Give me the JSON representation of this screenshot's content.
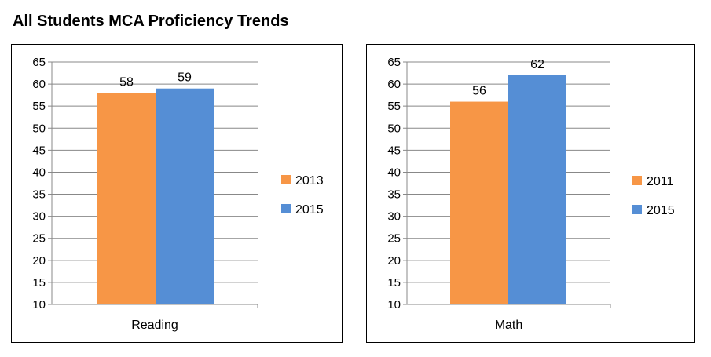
{
  "title": "All Students MCA Proficiency Trends",
  "chart_data": [
    {
      "type": "bar",
      "title": "",
      "categories": [
        "Reading"
      ],
      "series": [
        {
          "name": "2013",
          "color": "#F79646",
          "values": [
            58
          ]
        },
        {
          "name": "2015",
          "color": "#558ED5",
          "values": [
            59
          ]
        }
      ],
      "ylim": [
        10,
        65
      ],
      "yticks": [
        10,
        15,
        20,
        25,
        30,
        35,
        40,
        45,
        50,
        55,
        60,
        65
      ],
      "grid": true,
      "legend": "right",
      "xlabel": "",
      "ylabel": ""
    },
    {
      "type": "bar",
      "title": "",
      "categories": [
        "Math"
      ],
      "series": [
        {
          "name": "2011",
          "color": "#F79646",
          "values": [
            56
          ]
        },
        {
          "name": "2015",
          "color": "#558ED5",
          "values": [
            62
          ]
        }
      ],
      "ylim": [
        10,
        65
      ],
      "yticks": [
        10,
        15,
        20,
        25,
        30,
        35,
        40,
        45,
        50,
        55,
        60,
        65
      ],
      "grid": true,
      "legend": "right",
      "xlabel": "",
      "ylabel": ""
    }
  ]
}
